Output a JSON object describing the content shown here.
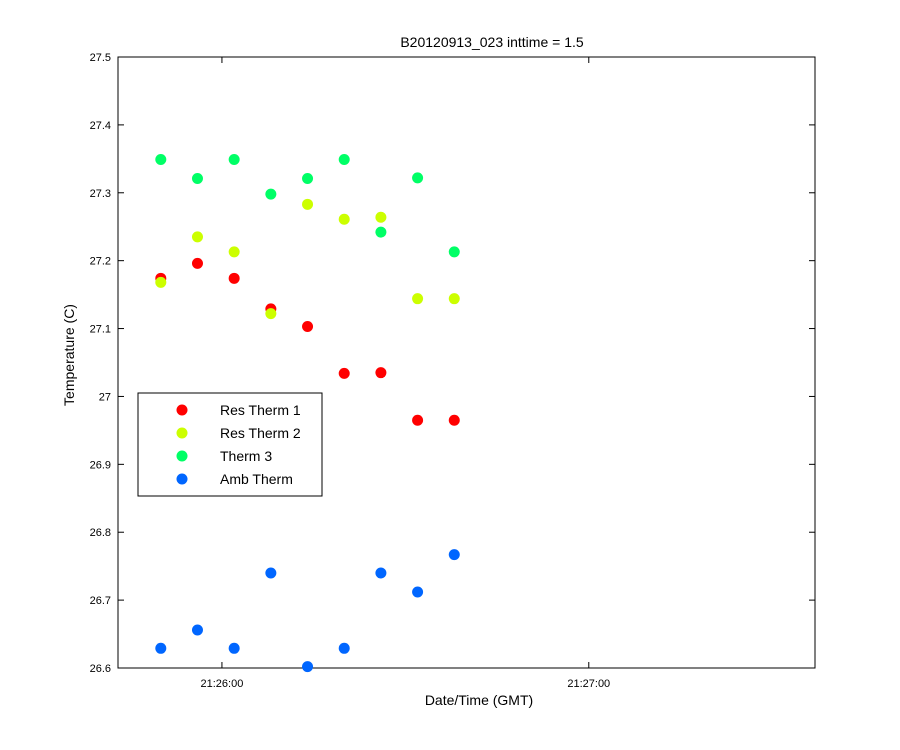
{
  "chart_data": {
    "type": "scatter",
    "title": "B20120913_023 inttime = 1.5",
    "xlabel": "Date/Time (GMT)",
    "ylabel": "Temperature (C)",
    "x_axis": {
      "type": "time",
      "range": [
        "21:25:43",
        "21:27:37"
      ],
      "ticks": [
        "21:26:00",
        "21:27:00"
      ]
    },
    "ylim": [
      26.6,
      27.5
    ],
    "yticks": [
      "26.6",
      "26.7",
      "26.8",
      "26.9",
      "27",
      "27.1",
      "27.2",
      "27.3",
      "27.4",
      "27.5"
    ],
    "grid": false,
    "legend_position": "left",
    "x": [
      "21:25:50",
      "21:25:56",
      "21:26:02",
      "21:26:08",
      "21:26:14",
      "21:26:20",
      "21:26:26",
      "21:26:32",
      "21:26:38"
    ],
    "series": [
      {
        "name": "Res Therm 1",
        "color": "#ff0000",
        "values": [
          27.174,
          27.196,
          27.174,
          27.129,
          27.103,
          27.034,
          27.035,
          26.965,
          26.965
        ]
      },
      {
        "name": "Res Therm 2",
        "color": "#ccff00",
        "values": [
          27.168,
          27.235,
          27.213,
          27.122,
          27.283,
          27.261,
          27.264,
          27.144,
          27.144
        ]
      },
      {
        "name": "Therm 3",
        "color": "#00ff66",
        "values": [
          27.349,
          27.321,
          27.349,
          27.298,
          27.321,
          27.349,
          27.242,
          27.322,
          27.213
        ]
      },
      {
        "name": "Amb Therm",
        "color": "#0066ff",
        "values": [
          26.629,
          26.656,
          26.629,
          26.74,
          26.602,
          26.629,
          26.74,
          26.712,
          26.767
        ]
      }
    ]
  }
}
